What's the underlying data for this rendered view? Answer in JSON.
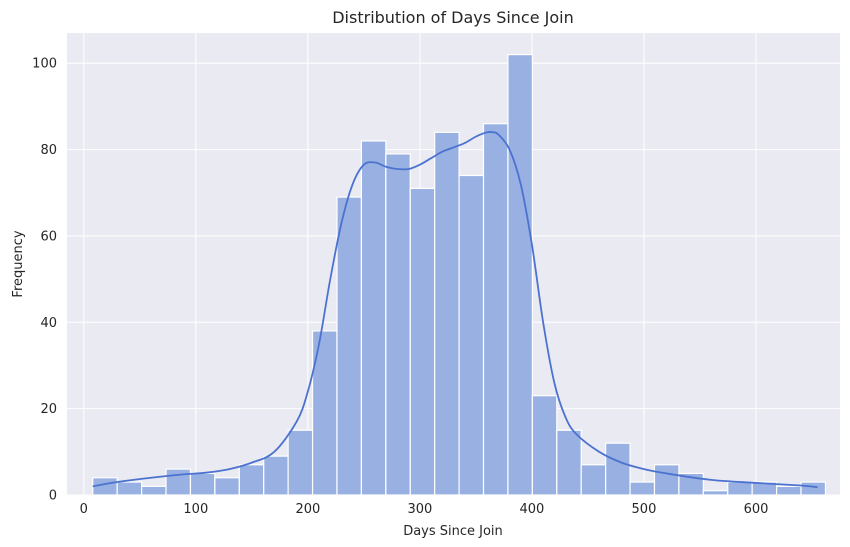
{
  "chart_data": {
    "type": "bar",
    "subtype": "histogram-with-kde",
    "title": "Distribution of Days Since Join",
    "xlabel": "Days Since Join",
    "ylabel": "Frequency",
    "xlim": [
      -15,
      675
    ],
    "ylim": [
      0,
      107
    ],
    "xticks": [
      0,
      100,
      200,
      300,
      400,
      500,
      600
    ],
    "yticks": [
      0,
      20,
      40,
      60,
      80,
      100
    ],
    "grid": true,
    "bin_start": 8,
    "bin_width": 21.8,
    "bins": [
      {
        "x0": 8.0,
        "x1": 29.8,
        "count": 4
      },
      {
        "x0": 29.8,
        "x1": 51.6,
        "count": 3
      },
      {
        "x0": 51.6,
        "x1": 73.4,
        "count": 2
      },
      {
        "x0": 73.4,
        "x1": 95.2,
        "count": 6
      },
      {
        "x0": 95.2,
        "x1": 117.0,
        "count": 5
      },
      {
        "x0": 117.0,
        "x1": 138.8,
        "count": 4
      },
      {
        "x0": 138.8,
        "x1": 160.6,
        "count": 7
      },
      {
        "x0": 160.6,
        "x1": 182.4,
        "count": 9
      },
      {
        "x0": 182.4,
        "x1": 204.2,
        "count": 15
      },
      {
        "x0": 204.2,
        "x1": 226.0,
        "count": 38
      },
      {
        "x0": 226.0,
        "x1": 247.8,
        "count": 69
      },
      {
        "x0": 247.8,
        "x1": 269.6,
        "count": 82
      },
      {
        "x0": 269.6,
        "x1": 291.4,
        "count": 79
      },
      {
        "x0": 291.4,
        "x1": 313.2,
        "count": 71
      },
      {
        "x0": 313.2,
        "x1": 335.0,
        "count": 84
      },
      {
        "x0": 335.0,
        "x1": 356.8,
        "count": 74
      },
      {
        "x0": 356.8,
        "x1": 378.6,
        "count": 86
      },
      {
        "x0": 378.6,
        "x1": 400.4,
        "count": 102
      },
      {
        "x0": 400.4,
        "x1": 422.2,
        "count": 23
      },
      {
        "x0": 422.2,
        "x1": 444.0,
        "count": 15
      },
      {
        "x0": 444.0,
        "x1": 465.8,
        "count": 7
      },
      {
        "x0": 465.8,
        "x1": 487.6,
        "count": 12
      },
      {
        "x0": 487.6,
        "x1": 509.4,
        "count": 3
      },
      {
        "x0": 509.4,
        "x1": 531.2,
        "count": 7
      },
      {
        "x0": 531.2,
        "x1": 553.0,
        "count": 5
      },
      {
        "x0": 553.0,
        "x1": 574.8,
        "count": 1
      },
      {
        "x0": 574.8,
        "x1": 596.6,
        "count": 3
      },
      {
        "x0": 596.6,
        "x1": 618.4,
        "count": 3
      },
      {
        "x0": 618.4,
        "x1": 640.2,
        "count": 2
      },
      {
        "x0": 640.2,
        "x1": 662.0,
        "count": 3
      }
    ],
    "kde": {
      "x": [
        8,
        30,
        60,
        90,
        110,
        130,
        150,
        170,
        190,
        200,
        210,
        220,
        230,
        240,
        250,
        260,
        270,
        280,
        290,
        300,
        310,
        320,
        330,
        340,
        350,
        360,
        365,
        370,
        380,
        390,
        400,
        410,
        420,
        430,
        440,
        460,
        480,
        500,
        520,
        560,
        600,
        640,
        655
      ],
      "y": [
        2,
        3,
        4,
        4.8,
        5.2,
        6,
        7.5,
        10,
        17,
        24,
        35,
        50,
        63,
        72,
        76.5,
        77,
        76,
        75.5,
        75.5,
        76.5,
        78,
        79.5,
        80.5,
        81.5,
        83,
        84,
        84,
        83.5,
        80,
        72,
        58,
        40,
        26,
        18,
        14,
        10,
        7.5,
        6,
        5,
        3.5,
        2.8,
        2.2,
        1.8
      ]
    },
    "colors": {
      "bar_fill": "#98b1e2",
      "bar_edge": "#ffffff",
      "kde_line": "#4c72d0",
      "plot_bg": "#eaeaf2",
      "grid": "#ffffff"
    }
  }
}
